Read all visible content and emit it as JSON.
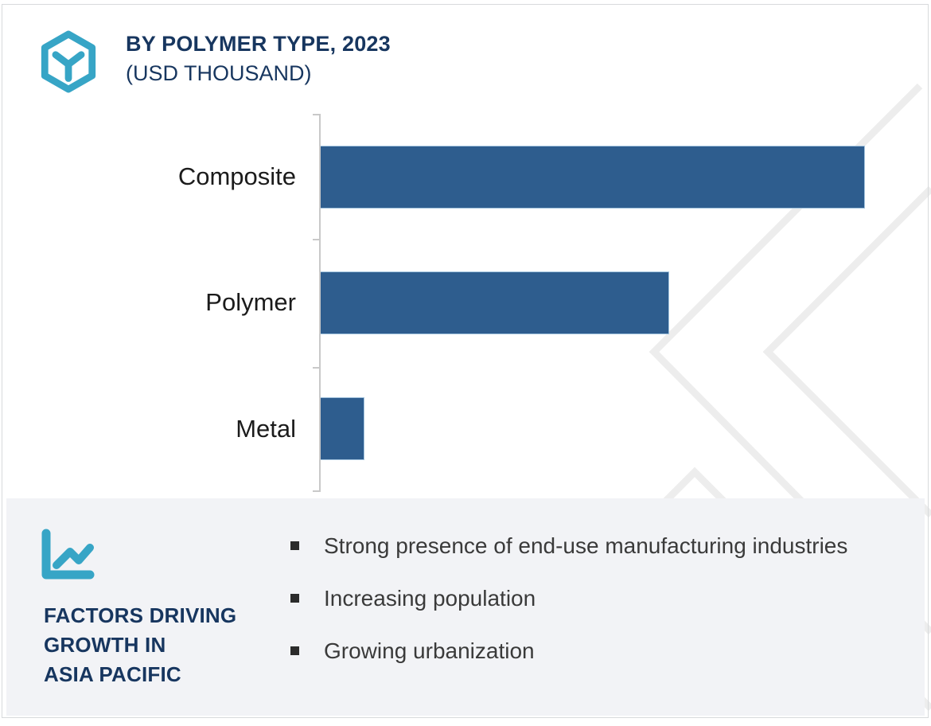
{
  "header": {
    "title": "BY POLYMER TYPE, 2023",
    "subtitle": "(USD THOUSAND)",
    "logo": "hexagon-y-logo"
  },
  "chart_data": {
    "type": "bar",
    "orientation": "horizontal",
    "title": "BY POLYMER TYPE, 2023 (USD THOUSAND)",
    "categories": [
      "Composite",
      "Polymer",
      "Metal"
    ],
    "values_relative_pct": [
      100,
      64,
      8
    ],
    "xlabel": "",
    "ylabel": "",
    "axis_value_labels_shown": false,
    "grid": false,
    "legend": "none",
    "bar_color": "#2e5d8e",
    "axis_color": "#c9c9c9"
  },
  "factors": {
    "icon": "line-chart-icon",
    "heading_lines": [
      "FACTORS DRIVING",
      "GROWTH IN",
      "ASIA PACIFIC"
    ],
    "bullets": [
      "Strong presence of end-use manufacturing industries",
      "Increasing population",
      "Growing urbanization"
    ]
  },
  "colors": {
    "accent_teal": "#37a5c6",
    "heading_navy": "#17365f",
    "bar_blue": "#2e5d8e",
    "panel_background": "#f2f3f6",
    "watermark_gray": "#ededed",
    "frame_border": "#d8dadc",
    "body_text": "#3a3a3a"
  }
}
